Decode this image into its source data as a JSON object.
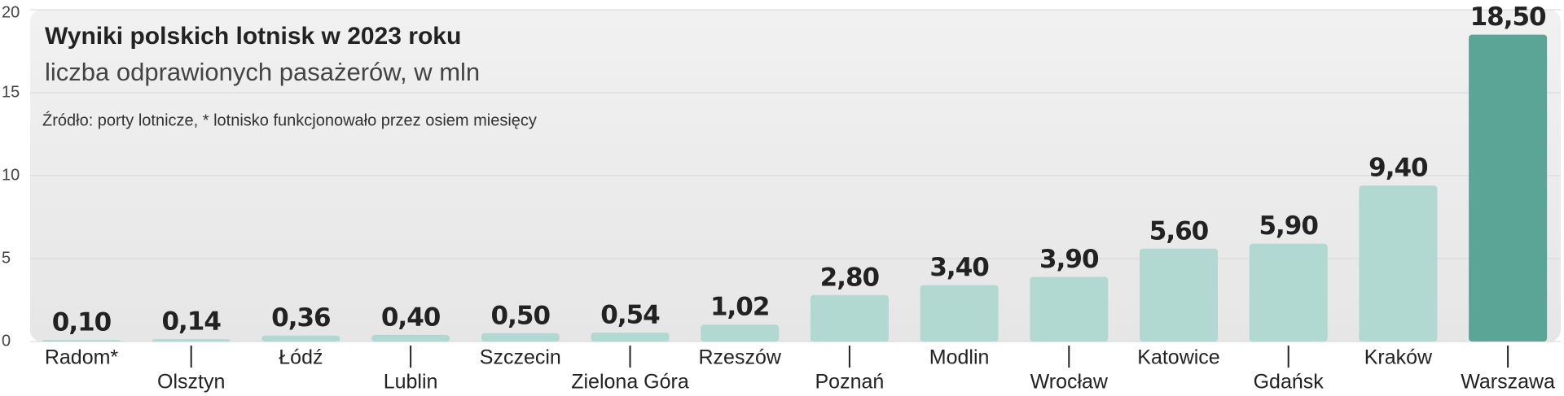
{
  "chart_data": {
    "type": "bar",
    "title": "Wyniki polskich lotnisk w 2023 roku",
    "subtitle": "liczba odprawionych pasażerów, w mln",
    "source": "Źródło: porty lotnicze, * lotnisko funkcjonowało przez osiem miesięcy",
    "categories": [
      "Radom*",
      "Olsztyn",
      "Łódź",
      "Lublin",
      "Szczecin",
      "Zielona Góra",
      "Rzeszów",
      "Poznań",
      "Modlin",
      "Wrocław",
      "Katowice",
      "Gdańsk",
      "Kraków",
      "Warszawa"
    ],
    "values": [
      0.1,
      0.14,
      0.36,
      0.4,
      0.5,
      0.54,
      1.02,
      2.8,
      3.4,
      3.9,
      5.6,
      5.9,
      9.4,
      18.5
    ],
    "value_labels": [
      "0,10",
      "0,14",
      "0,36",
      "0,40",
      "0,50",
      "0,54",
      "1,02",
      "2,80",
      "3,40",
      "3,90",
      "5,60",
      "5,90",
      "9,40",
      "18,50"
    ],
    "colors": [
      "#b2d8d2",
      "#b2d8d2",
      "#b2d8d2",
      "#b2d8d2",
      "#b2d8d2",
      "#b2d8d2",
      "#b2d8d2",
      "#b2d8d2",
      "#b2d8d2",
      "#b2d8d2",
      "#b2d8d2",
      "#b2d8d2",
      "#b2d8d2",
      "#5aa596"
    ],
    "ylim": [
      0,
      20
    ],
    "yticks": [
      0,
      5,
      10,
      15,
      20
    ],
    "grid": true
  }
}
